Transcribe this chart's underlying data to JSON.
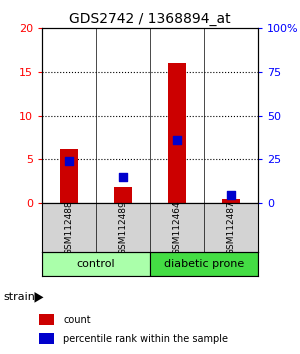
{
  "title": "GDS2742 / 1368894_at",
  "samples": [
    "GSM112488",
    "GSM112489",
    "GSM112464",
    "GSM112487"
  ],
  "count_values": [
    6.2,
    1.8,
    16.0,
    0.4
  ],
  "percentile_values": [
    24.0,
    15.0,
    36.0,
    4.5
  ],
  "groups": [
    {
      "label": "control",
      "samples": [
        0,
        1
      ],
      "color": "#aaffaa"
    },
    {
      "label": "diabetic prone",
      "samples": [
        2,
        3
      ],
      "color": "#44dd44"
    }
  ],
  "ylim_left": [
    0,
    20
  ],
  "ylim_right": [
    0,
    100
  ],
  "yticks_left": [
    0,
    5,
    10,
    15,
    20
  ],
  "yticks_right": [
    0,
    25,
    50,
    75,
    100
  ],
  "ytick_labels_right": [
    "0",
    "25",
    "50",
    "75",
    "100%"
  ],
  "bar_color": "#cc0000",
  "dot_color": "#0000cc",
  "bar_width": 0.35,
  "dot_size": 30,
  "background_color": "#ffffff",
  "plot_bg_color": "#ffffff",
  "strain_label": "strain",
  "legend_count": "count",
  "legend_percentile": "percentile rank within the sample"
}
